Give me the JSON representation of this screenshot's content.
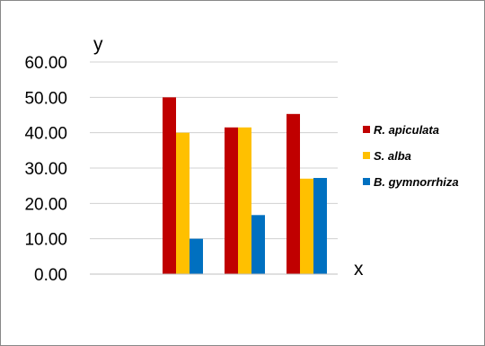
{
  "chart_data": {
    "type": "bar",
    "xlabel": "x",
    "ylabel": "y",
    "ylim": [
      0,
      60
    ],
    "yticks": [
      "0.00",
      "10.00",
      "20.00",
      "30.00",
      "40.00",
      "50.00",
      "60.00"
    ],
    "grid": true,
    "legend_position": "right",
    "categories": [
      "",
      "",
      "",
      ""
    ],
    "series": [
      {
        "name": "R. apiculata",
        "color": "#C00000",
        "values": [
          null,
          50.0,
          41.5,
          45.3
        ]
      },
      {
        "name": "S. alba",
        "color": "#FFC000",
        "values": [
          null,
          40.0,
          41.5,
          27.0
        ]
      },
      {
        "name": "B. gymnorrhiza",
        "color": "#0070C0",
        "values": [
          null,
          10.0,
          16.7,
          27.2
        ]
      }
    ]
  }
}
